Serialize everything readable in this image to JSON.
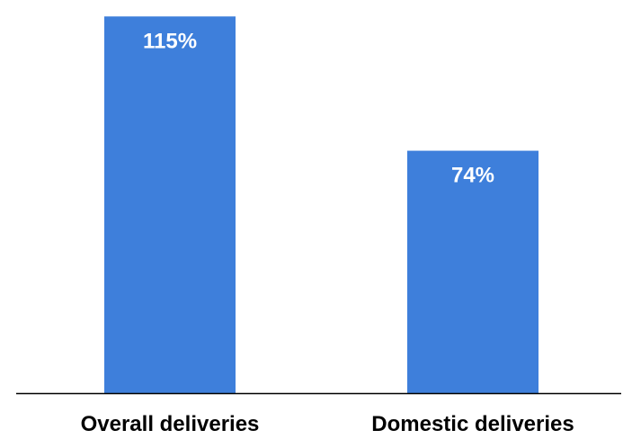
{
  "chart_data": {
    "type": "bar",
    "categories": [
      "Overall deliveries",
      "Domestic deliveries"
    ],
    "values": [
      115,
      74
    ],
    "data_labels": [
      "115%",
      "74%"
    ],
    "unit": "%",
    "title": "",
    "xlabel": "",
    "ylabel": "",
    "ylim": [
      0,
      117
    ],
    "grid": false,
    "legend": "none",
    "colors": {
      "bar": "#3e7fdb",
      "axis": "#000000",
      "label": "#ffffff",
      "tick_text": "#000000"
    }
  }
}
